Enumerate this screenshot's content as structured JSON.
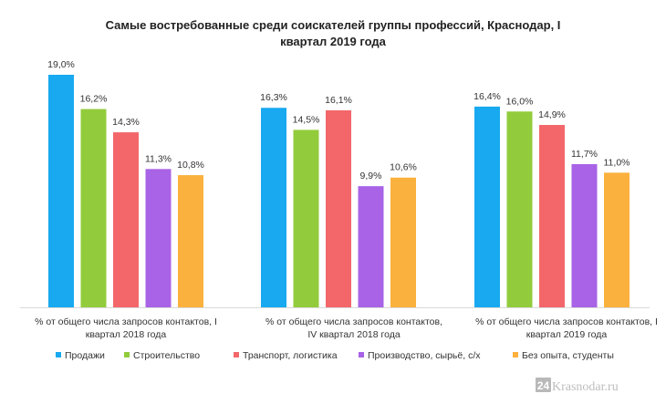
{
  "chart_data": {
    "type": "bar",
    "title": [
      "Самые востребованные среди соискателей группы профессий, Краснодар, I",
      "квартал 2019 года"
    ],
    "unit": "%",
    "categories": [
      [
        "% от общего числа запросов контактов, I",
        "квартал 2018 года"
      ],
      [
        "% от общего числа запросов контактов,",
        "IV квартал 2018 года"
      ],
      [
        "% от общего числа запросов контактов, I",
        "квартал 2019 года"
      ]
    ],
    "series": [
      {
        "name": "Продажи",
        "color": "#18a9f0",
        "values": [
          19.0,
          16.3,
          16.4
        ],
        "labels": [
          "19,0%",
          "16,3%",
          "16,4%"
        ]
      },
      {
        "name": "Строительство",
        "color": "#92cc3c",
        "values": [
          16.2,
          14.5,
          16.0
        ],
        "labels": [
          "16,2%",
          "14,5%",
          "16,0%"
        ]
      },
      {
        "name": "Транспорт, логистика",
        "color": "#f3676a",
        "values": [
          14.3,
          16.1,
          14.9
        ],
        "labels": [
          "14,3%",
          "16,1%",
          "14,9%"
        ]
      },
      {
        "name": "Производство, сырьё, с/х",
        "color": "#a863e6",
        "values": [
          11.3,
          9.9,
          11.7
        ],
        "labels": [
          "11,3%",
          "9,9%",
          "11,7%"
        ]
      },
      {
        "name": "Без опыта, студенты",
        "color": "#fbb13d",
        "values": [
          10.8,
          10.6,
          11.0
        ],
        "labels": [
          "10,8%",
          "10,6%",
          "11,0%"
        ]
      }
    ],
    "ylim": [
      0,
      19.0
    ],
    "grid": false,
    "legend": "bottom"
  },
  "watermark": {
    "badge": "24",
    "text": "Krasnodar.ru"
  }
}
